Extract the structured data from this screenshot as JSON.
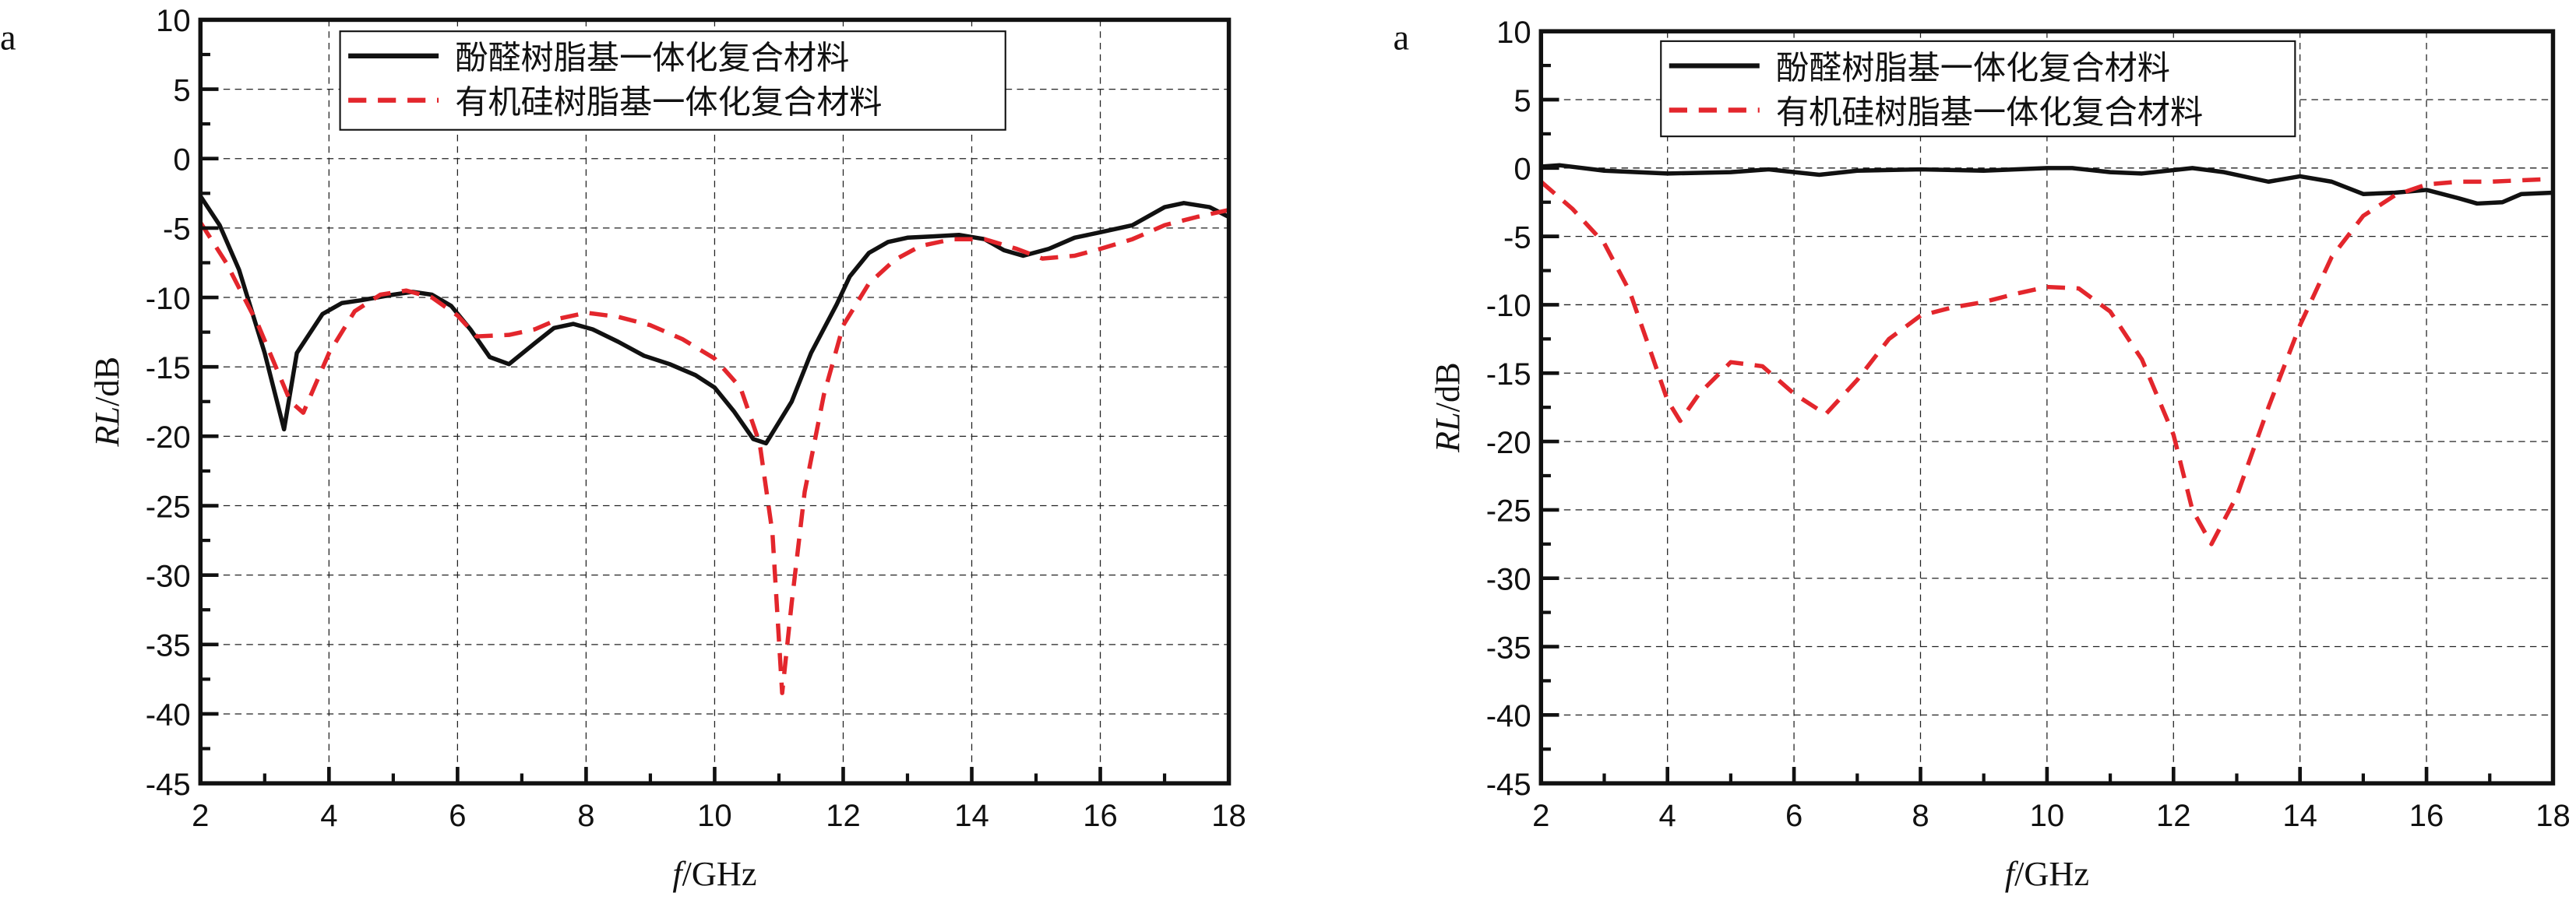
{
  "chart_data": [
    {
      "type": "line",
      "panel_label": "a",
      "xlabel": {
        "italic": "f",
        "rest": "/GHz"
      },
      "ylabel": {
        "italic": "RL",
        "rest": "/dB"
      },
      "xlim": [
        2,
        18
      ],
      "ylim": [
        -45,
        10
      ],
      "xticks": [
        2,
        4,
        6,
        8,
        10,
        12,
        14,
        16,
        18
      ],
      "yticks": [
        10,
        5,
        0,
        -5,
        -10,
        -15,
        -20,
        -25,
        -30,
        -35,
        -40,
        -45
      ],
      "grid": true,
      "legend_position": "top-center",
      "series": [
        {
          "name": "酚醛树脂基一体化复合材料",
          "color": "#111111",
          "style": "solid",
          "x": [
            2,
            2.3,
            2.6,
            3.0,
            3.3,
            3.5,
            3.9,
            4.2,
            4.5,
            5.0,
            5.3,
            5.6,
            5.9,
            6.2,
            6.5,
            6.8,
            7.2,
            7.5,
            7.8,
            8.1,
            8.5,
            8.9,
            9.3,
            9.7,
            10.0,
            10.3,
            10.6,
            10.8,
            11.2,
            11.5,
            11.9,
            12.1,
            12.4,
            12.7,
            13.0,
            13.4,
            13.8,
            14.2,
            14.5,
            14.8,
            15.2,
            15.6,
            16.0,
            16.5,
            17.0,
            17.3,
            17.7,
            18.0
          ],
          "y": [
            -2.7,
            -4.8,
            -8,
            -14,
            -19.5,
            -14,
            -11.2,
            -10.4,
            -10.2,
            -9.8,
            -9.6,
            -9.8,
            -10.6,
            -12.3,
            -14.3,
            -14.8,
            -13.3,
            -12.2,
            -11.9,
            -12.3,
            -13.2,
            -14.2,
            -14.8,
            -15.6,
            -16.5,
            -18.2,
            -20.2,
            -20.5,
            -17.5,
            -14,
            -10.5,
            -8.5,
            -6.8,
            -6.0,
            -5.7,
            -5.6,
            -5.5,
            -5.8,
            -6.6,
            -7.0,
            -6.5,
            -5.7,
            -5.3,
            -4.8,
            -3.5,
            -3.2,
            -3.5,
            -4.2
          ]
        },
        {
          "name": "有机硅树脂基一体化复合材料",
          "color": "#e3262c",
          "style": "dashed",
          "x": [
            2,
            2.4,
            2.9,
            3.4,
            3.6,
            4.0,
            4.4,
            4.8,
            5.2,
            5.6,
            6.0,
            6.3,
            6.8,
            7.2,
            7.6,
            8.0,
            8.5,
            9.0,
            9.5,
            10.0,
            10.4,
            10.7,
            10.9,
            11.05,
            11.2,
            11.4,
            11.7,
            12.0,
            12.4,
            12.8,
            13.2,
            13.7,
            14.2,
            14.7,
            15.1,
            15.6,
            16.0,
            16.5,
            17.0,
            17.5,
            18.0
          ],
          "y": [
            -4.6,
            -7.5,
            -12,
            -17.5,
            -18.3,
            -14,
            -11,
            -9.8,
            -9.5,
            -10,
            -11.3,
            -12.8,
            -12.7,
            -12.3,
            -11.5,
            -11.1,
            -11.4,
            -12,
            -13,
            -14.4,
            -16.5,
            -20.5,
            -27,
            -38.5,
            -32,
            -24,
            -17,
            -12,
            -9,
            -7.3,
            -6.3,
            -5.8,
            -5.8,
            -6.5,
            -7.2,
            -7.0,
            -6.5,
            -5.8,
            -4.8,
            -4.2,
            -3.7
          ]
        }
      ]
    },
    {
      "type": "line",
      "panel_label": "a",
      "xlabel": {
        "italic": "f",
        "rest": "/GHz"
      },
      "ylabel": {
        "italic": "RL",
        "rest": "/dB"
      },
      "xlim": [
        2,
        18
      ],
      "ylim": [
        -45,
        10
      ],
      "xticks": [
        2,
        4,
        6,
        8,
        10,
        12,
        14,
        16,
        18
      ],
      "yticks": [
        10,
        5,
        0,
        -5,
        -10,
        -15,
        -20,
        -25,
        -30,
        -35,
        -40,
        -45
      ],
      "grid": true,
      "legend_position": "top-center",
      "series": [
        {
          "name": "酚醛树脂基一体化复合材料",
          "color": "#111111",
          "style": "solid",
          "x": [
            2,
            2.3,
            3.0,
            4.0,
            5.0,
            5.6,
            6.4,
            7.0,
            8.0,
            9.0,
            10.0,
            10.4,
            11.0,
            11.5,
            12.3,
            12.8,
            13.5,
            14.0,
            14.5,
            15.0,
            15.5,
            16.0,
            16.5,
            16.8,
            17.2,
            17.5,
            18.0
          ],
          "y": [
            0.1,
            0.2,
            -0.2,
            -0.4,
            -0.3,
            -0.1,
            -0.5,
            -0.2,
            -0.1,
            -0.2,
            0.0,
            0.0,
            -0.3,
            -0.4,
            0.0,
            -0.3,
            -1.0,
            -0.6,
            -1.0,
            -1.9,
            -1.8,
            -1.6,
            -2.2,
            -2.6,
            -2.5,
            -1.9,
            -1.8
          ]
        },
        {
          "name": "有机硅树脂基一体化复合材料",
          "color": "#e3262c",
          "style": "dashed",
          "x": [
            2,
            2.5,
            3.0,
            3.4,
            3.7,
            4.0,
            4.2,
            4.5,
            5.0,
            5.5,
            6.0,
            6.5,
            7.0,
            7.5,
            8.0,
            8.5,
            9.0,
            9.5,
            10.0,
            10.5,
            11.0,
            11.5,
            12.0,
            12.3,
            12.6,
            13.0,
            13.5,
            14.0,
            14.5,
            15.0,
            15.5,
            16.0,
            16.5,
            17.0,
            18.0
          ],
          "y": [
            -1,
            -3,
            -5.5,
            -9,
            -13,
            -17,
            -18.5,
            -16.5,
            -14.2,
            -14.5,
            -16.5,
            -18,
            -15.5,
            -12.5,
            -10.8,
            -10.2,
            -9.8,
            -9.2,
            -8.7,
            -8.8,
            -10.5,
            -14,
            -19.5,
            -25,
            -27.5,
            -24,
            -17.5,
            -11.5,
            -6.5,
            -3.5,
            -2,
            -1.2,
            -1,
            -1,
            -0.8
          ]
        }
      ]
    }
  ]
}
